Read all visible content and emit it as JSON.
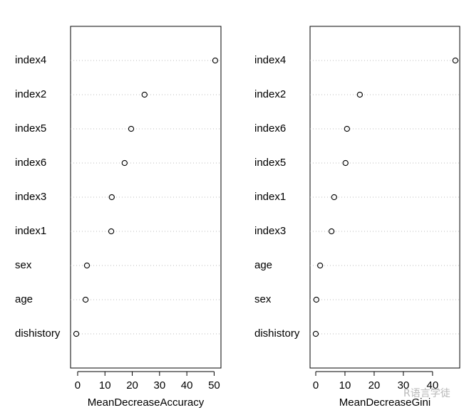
{
  "chart_data": [
    {
      "type": "dot",
      "categories": [
        "index4",
        "index2",
        "index5",
        "index6",
        "index3",
        "index1",
        "sex",
        "age",
        "dishistory"
      ],
      "values": [
        50.4,
        24.5,
        19.6,
        17.2,
        12.5,
        12.3,
        3.4,
        2.9,
        -0.5
      ],
      "xlabel": "MeanDecreaseAccuracy",
      "xlim": [
        -2.6,
        52.5
      ],
      "xticks": [
        0,
        10,
        20,
        30,
        40,
        50
      ]
    },
    {
      "type": "dot",
      "categories": [
        "index4",
        "index2",
        "index6",
        "index5",
        "index1",
        "index3",
        "age",
        "sex",
        "dishistory"
      ],
      "values": [
        47.8,
        15.1,
        10.7,
        10.2,
        6.3,
        5.4,
        1.5,
        0.2,
        0.0
      ],
      "xlabel": "MeanDecreaseGini",
      "xlim": [
        -1.95,
        49.3
      ],
      "xticks": [
        0,
        10,
        20,
        30,
        40
      ]
    }
  ],
  "watermark": "R语言学徒"
}
